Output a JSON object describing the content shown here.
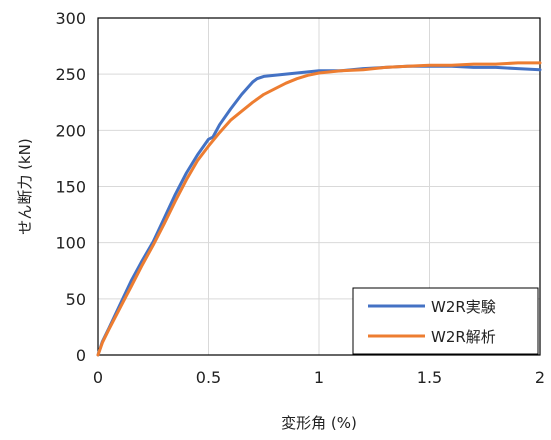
{
  "chart_data": {
    "type": "line",
    "title": "",
    "xlabel": "変形角 (%)",
    "ylabel": "せん断力 (kN)",
    "xlim": [
      0,
      2
    ],
    "ylim": [
      0,
      300
    ],
    "xticks": [
      0,
      0.5,
      1,
      1.5,
      2
    ],
    "xtick_labels": [
      "0",
      "0.5",
      "1",
      "1.5",
      "2"
    ],
    "yticks": [
      0,
      50,
      100,
      150,
      200,
      250,
      300
    ],
    "ytick_labels": [
      "0",
      "50",
      "100",
      "150",
      "200",
      "250",
      "300"
    ],
    "grid": true,
    "legend_position": "bottom-right",
    "series": [
      {
        "name": "W2R実験",
        "color": "#4472c4",
        "x": [
          0,
          0.02,
          0.05,
          0.1,
          0.15,
          0.2,
          0.25,
          0.3,
          0.35,
          0.4,
          0.45,
          0.5,
          0.52,
          0.55,
          0.6,
          0.65,
          0.7,
          0.72,
          0.75,
          0.8,
          0.9,
          1.0,
          1.1,
          1.2,
          1.3,
          1.4,
          1.5,
          1.6,
          1.7,
          1.8,
          1.9,
          2.0
        ],
        "y": [
          0,
          12,
          24,
          45,
          66,
          84,
          101,
          122,
          143,
          162,
          178,
          192,
          194,
          205,
          219,
          232,
          243,
          246,
          248,
          249,
          251,
          253,
          253,
          255,
          256,
          257,
          257,
          257,
          256,
          256,
          255,
          254
        ]
      },
      {
        "name": "W2R解析",
        "color": "#ed7d31",
        "x": [
          0,
          0.02,
          0.05,
          0.1,
          0.15,
          0.2,
          0.25,
          0.3,
          0.35,
          0.4,
          0.45,
          0.5,
          0.55,
          0.6,
          0.65,
          0.7,
          0.75,
          0.8,
          0.85,
          0.9,
          0.95,
          1.0,
          1.1,
          1.2,
          1.3,
          1.4,
          1.5,
          1.6,
          1.7,
          1.8,
          1.9,
          2.0
        ],
        "y": [
          0,
          11,
          23,
          42,
          61,
          80,
          98,
          117,
          137,
          156,
          173,
          186,
          198,
          209,
          217,
          225,
          232,
          237,
          242,
          246,
          249,
          251,
          253,
          254,
          256,
          257,
          258,
          258,
          259,
          259,
          260,
          260
        ]
      }
    ]
  }
}
